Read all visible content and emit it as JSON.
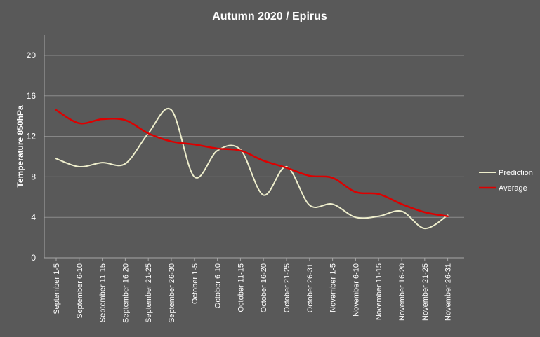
{
  "chart_data": {
    "type": "line",
    "title": "Autumn 2020 / Epirus",
    "xlabel": "",
    "ylabel": "Temperature 850hPa",
    "ylim": [
      0,
      20
    ],
    "yticks": [
      0,
      4,
      8,
      12,
      16,
      20
    ],
    "grid": true,
    "legend_position": "right",
    "categories": [
      "September 1-5",
      "September 6-10",
      "September 11-15",
      "September 16-20",
      "September 21-25",
      "September 26-30",
      "October 1-5",
      "October 6-10",
      "October 11-15",
      "October 16-20",
      "October 21-25",
      "October 26-31",
      "November 1-5",
      "November 6-10",
      "November 11-15",
      "November 16-20",
      "November 21-25",
      "November 26-31"
    ],
    "series": [
      {
        "name": "Prediction",
        "color": "#eeeecc",
        "values": [
          9.8,
          9.0,
          9.4,
          9.3,
          12.3,
          14.6,
          8.0,
          10.6,
          10.7,
          6.2,
          9.0,
          5.2,
          5.3,
          4.0,
          4.1,
          4.6,
          2.9,
          4.2
        ]
      },
      {
        "name": "Average",
        "color": "#dd0000",
        "values": [
          14.6,
          13.3,
          13.7,
          13.6,
          12.3,
          11.5,
          11.2,
          10.8,
          10.6,
          9.6,
          8.9,
          8.1,
          7.9,
          6.5,
          6.3,
          5.3,
          4.5,
          4.1
        ]
      }
    ]
  }
}
